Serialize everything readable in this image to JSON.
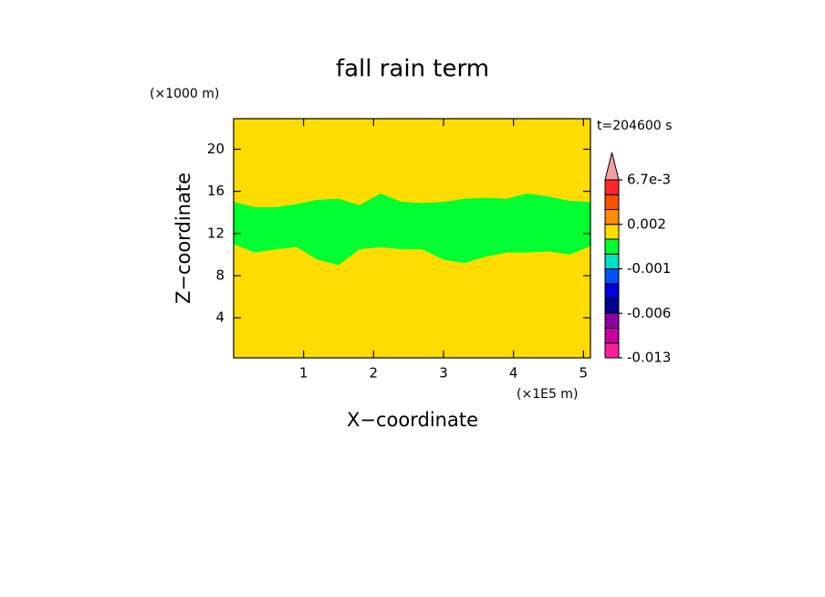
{
  "chart_data": {
    "type": "contour",
    "title": "fall rain term",
    "y_unit": "(×1000 m)",
    "x_unit": "(×1E5 m)",
    "time_label": "t=204600 s",
    "xlabel": "X−coordinate",
    "ylabel": "Z−coordinate",
    "xlim": [
      0,
      5.1
    ],
    "xticks": [
      1,
      2,
      3,
      4,
      5
    ],
    "ylim": [
      0.2,
      22.9
    ],
    "yticks": [
      4,
      8,
      12,
      16,
      20
    ],
    "background_color": "#ffdc00",
    "band_color": "#00ff30",
    "x": [
      0,
      0.3,
      0.6,
      0.9,
      1.2,
      1.5,
      1.8,
      2.1,
      2.4,
      2.7,
      3.0,
      3.3,
      3.6,
      3.9,
      4.2,
      4.5,
      4.8,
      5.1
    ],
    "band_top": [
      15,
      14.5,
      14.5,
      14.8,
      15.2,
      15.3,
      14.7,
      15.8,
      15,
      14.9,
      15,
      15.3,
      15.4,
      15.3,
      15.8,
      15.5,
      15.1,
      15
    ],
    "band_bottom": [
      11,
      10.2,
      10.5,
      10.7,
      9.5,
      9,
      10.5,
      10.7,
      10.5,
      10.5,
      9.5,
      9.2,
      9.8,
      10.2,
      10.2,
      10.3,
      10,
      10.8
    ],
    "levels": [
      -0.013,
      -0.011,
      -0.008,
      -0.006,
      -0.004,
      -0.002,
      -0.001,
      0,
      0.001,
      0.002,
      0.004,
      0.0055,
      0.0067
    ],
    "level_colors": [
      "#ff1ea0",
      "#c800a0",
      "#9000a0",
      "#00008c",
      "#0000dc",
      "#0050ff",
      "#00e0c8",
      "#00ff30",
      "#ffdc00",
      "#ff8c00",
      "#ff5000",
      "#ff2828"
    ],
    "extend_color": "#f0a0a0",
    "cbticks": [
      -0.013,
      -0.006,
      -0.001,
      0.002,
      {
        "value": 0.0067,
        "label": "6.7e-3"
      }
    ]
  }
}
